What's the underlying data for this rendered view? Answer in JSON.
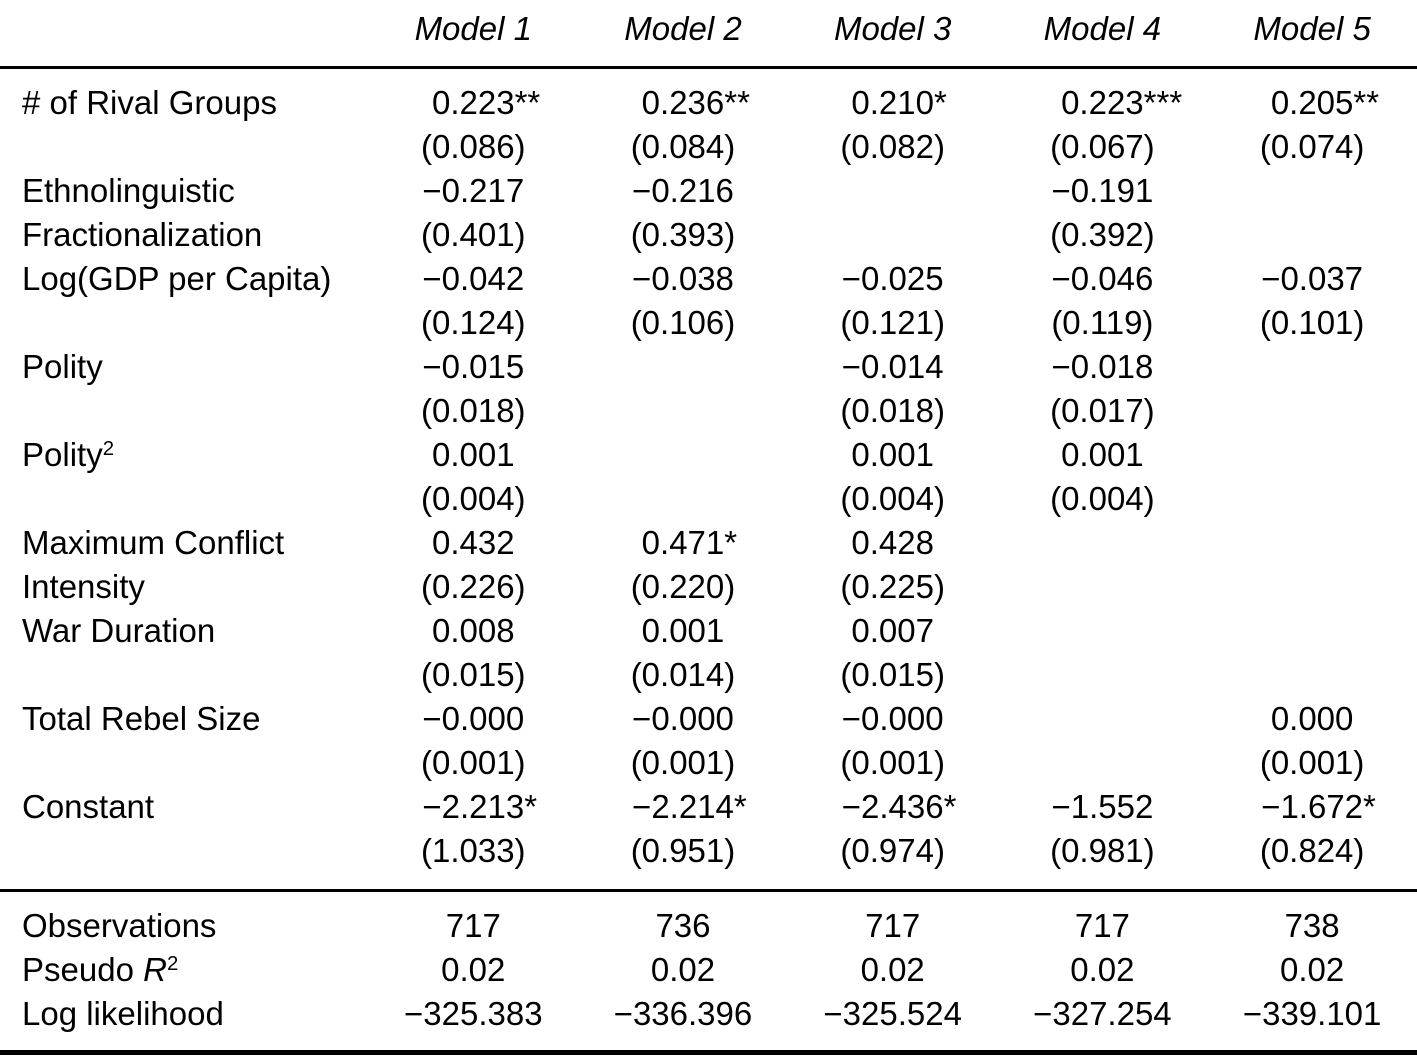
{
  "table": {
    "corner_label": "",
    "columns": [
      "Model 1",
      "Model 2",
      "Model 3",
      "Model 4",
      "Model 5"
    ],
    "rows": [
      {
        "label": [
          "# of Rival Groups"
        ],
        "cells": [
          {
            "coef": "0.223",
            "stars": "**",
            "se": "(0.086)"
          },
          {
            "coef": "0.236",
            "stars": "**",
            "se": "(0.084)"
          },
          {
            "coef": "0.210",
            "stars": "*",
            "se": "(0.082)"
          },
          {
            "coef": "0.223",
            "stars": "***",
            "se": "(0.067)"
          },
          {
            "coef": "0.205",
            "stars": "**",
            "se": "(0.074)"
          }
        ]
      },
      {
        "label": [
          "Ethnolinguistic",
          "Fractionalization"
        ],
        "cells": [
          {
            "coef": "−0.217",
            "stars": "",
            "se": "(0.401)"
          },
          {
            "coef": "−0.216",
            "stars": "",
            "se": "(0.393)"
          },
          null,
          {
            "coef": "−0.191",
            "stars": "",
            "se": "(0.392)"
          },
          null
        ]
      },
      {
        "label": [
          "Log(GDP per Capita)"
        ],
        "cells": [
          {
            "coef": "−0.042",
            "stars": "",
            "se": "(0.124)"
          },
          {
            "coef": "−0.038",
            "stars": "",
            "se": "(0.106)"
          },
          {
            "coef": "−0.025",
            "stars": "",
            "se": "(0.121)"
          },
          {
            "coef": "−0.046",
            "stars": "",
            "se": "(0.119)"
          },
          {
            "coef": "−0.037",
            "stars": "",
            "se": "(0.101)"
          }
        ]
      },
      {
        "label": [
          "Polity"
        ],
        "cells": [
          {
            "coef": "−0.015",
            "stars": "",
            "se": "(0.018)"
          },
          null,
          {
            "coef": "−0.014",
            "stars": "",
            "se": "(0.018)"
          },
          {
            "coef": "−0.018",
            "stars": "",
            "se": "(0.017)"
          },
          null
        ]
      },
      {
        "label": [
          "Polity"
        ],
        "label_sup": "2",
        "cells": [
          {
            "coef": "0.001",
            "stars": "",
            "se": "(0.004)"
          },
          null,
          {
            "coef": "0.001",
            "stars": "",
            "se": "(0.004)"
          },
          {
            "coef": "0.001",
            "stars": "",
            "se": "(0.004)"
          },
          null
        ]
      },
      {
        "label": [
          "Maximum Conflict",
          "Intensity"
        ],
        "cells": [
          {
            "coef": "0.432",
            "stars": "",
            "se": "(0.226)"
          },
          {
            "coef": "0.471",
            "stars": "*",
            "se": "(0.220)"
          },
          {
            "coef": "0.428",
            "stars": "",
            "se": "(0.225)"
          },
          null,
          null
        ]
      },
      {
        "label": [
          "War Duration"
        ],
        "cells": [
          {
            "coef": "0.008",
            "stars": "",
            "se": "(0.015)"
          },
          {
            "coef": "0.001",
            "stars": "",
            "se": "(0.014)"
          },
          {
            "coef": "0.007",
            "stars": "",
            "se": "(0.015)"
          },
          null,
          null
        ]
      },
      {
        "label": [
          "Total Rebel Size"
        ],
        "cells": [
          {
            "coef": "−0.000",
            "stars": "",
            "se": "(0.001)"
          },
          {
            "coef": "−0.000",
            "stars": "",
            "se": "(0.001)"
          },
          {
            "coef": "−0.000",
            "stars": "",
            "se": "(0.001)"
          },
          null,
          {
            "coef": "0.000",
            "stars": "",
            "se": "(0.001)"
          }
        ]
      },
      {
        "label": [
          "Constant"
        ],
        "cells": [
          {
            "coef": "−2.213",
            "stars": "*",
            "se": "(1.033)"
          },
          {
            "coef": "−2.214",
            "stars": "*",
            "se": "(0.951)"
          },
          {
            "coef": "−2.436",
            "stars": "*",
            "se": "(0.974)"
          },
          {
            "coef": "−1.552",
            "stars": "",
            "se": "(0.981)"
          },
          {
            "coef": "−1.672",
            "stars": "*",
            "se": "(0.824)"
          }
        ]
      }
    ],
    "stats": [
      {
        "label": "Observations",
        "values": [
          "717",
          "736",
          "717",
          "717",
          "738"
        ]
      },
      {
        "label": "Pseudo ",
        "label_italic": "R",
        "label_sup": "2",
        "values": [
          "0.02",
          "0.02",
          "0.02",
          "0.02",
          "0.02"
        ]
      },
      {
        "label": "Log likelihood",
        "values": [
          "−325.383",
          "−336.396",
          "−325.524",
          "−327.254",
          "−339.101"
        ]
      }
    ]
  }
}
